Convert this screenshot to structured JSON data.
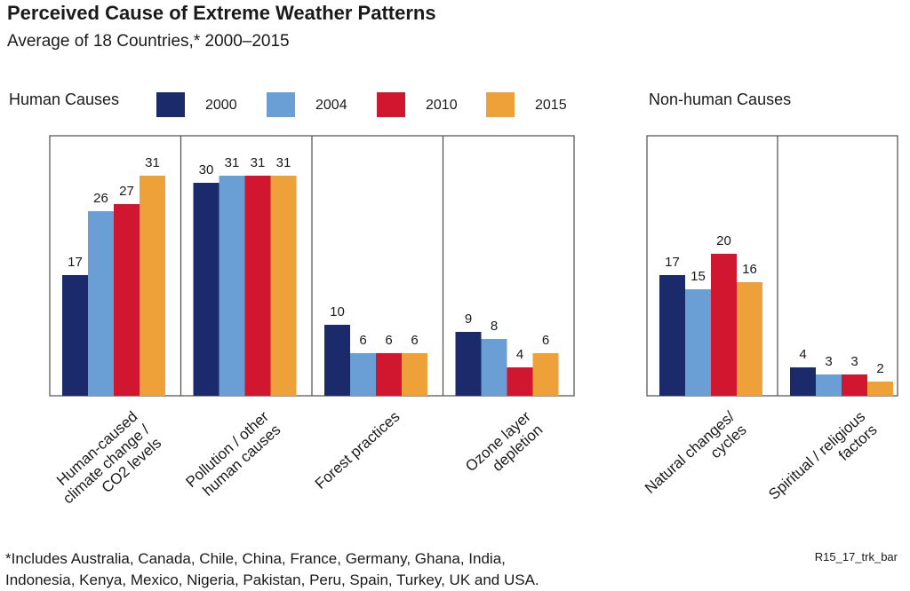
{
  "title": "Perceived Cause of Extreme Weather Patterns",
  "subtitle": "Average of 18 Countries,* 2000–2015",
  "groups": {
    "human": "Human Causes",
    "nonhuman": "Non-human Causes"
  },
  "footnote": {
    "line1": "*Includes Australia, Canada, Chile, China, France, Germany, Ghana, India,",
    "line2": "Indonesia, Kenya, Mexico, Nigeria, Pakistan, Peru, Spain, Turkey, UK and USA."
  },
  "credit": "R15_17_trk_bar",
  "colors": {
    "2000": "#1b2a6b",
    "2004": "#6a9fd6",
    "2010": "#d0172f",
    "2015": "#eea138"
  },
  "chart_data": {
    "type": "bar",
    "ylim": [
      0,
      35
    ],
    "legend": "top",
    "series_names": [
      "2000",
      "2004",
      "2010",
      "2015"
    ],
    "panels": [
      {
        "group": "Human Causes",
        "categories": [
          {
            "label_lines": [
              "Human-caused",
              "climate change /",
              "CO2 levels"
            ],
            "values": [
              17,
              26,
              27,
              31
            ]
          },
          {
            "label_lines": [
              "Pollution / other",
              "human causes"
            ],
            "values": [
              30,
              31,
              31,
              31
            ]
          },
          {
            "label_lines": [
              "Forest practices"
            ],
            "values": [
              10,
              6,
              6,
              6
            ]
          },
          {
            "label_lines": [
              "Ozone layer",
              "depletion"
            ],
            "values": [
              9,
              8,
              4,
              6
            ]
          }
        ]
      },
      {
        "group": "Non-human Causes",
        "categories": [
          {
            "label_lines": [
              "Natural changes/",
              "cycles"
            ],
            "values": [
              17,
              15,
              20,
              16
            ]
          },
          {
            "label_lines": [
              "Spiritual / religious",
              "factors"
            ],
            "values": [
              4,
              3,
              3,
              2
            ]
          }
        ]
      }
    ]
  }
}
